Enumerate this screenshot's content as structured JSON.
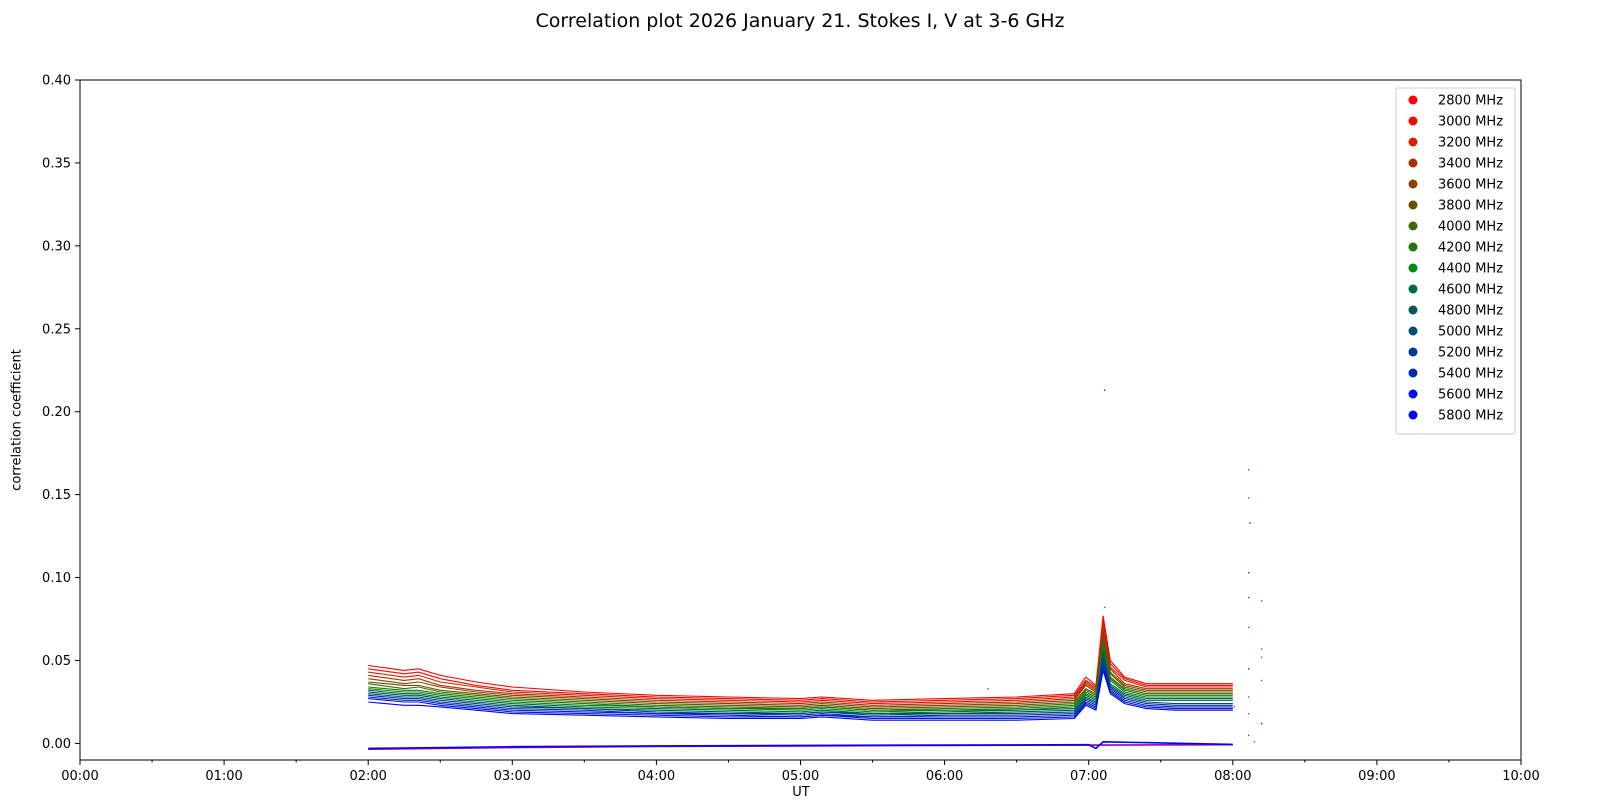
{
  "chart_data": {
    "type": "scatter",
    "title": "Correlation plot 2026 January 21. Stokes I, V at 3-6 GHz",
    "xlabel": "UT",
    "ylabel": "correlation coefficient",
    "x_ticks": [
      "00:00",
      "01:00",
      "02:00",
      "03:00",
      "04:00",
      "05:00",
      "06:00",
      "07:00",
      "08:00",
      "09:00",
      "10:00"
    ],
    "x_tick_hours": [
      0,
      1,
      2,
      3,
      4,
      5,
      6,
      7,
      8,
      9,
      10
    ],
    "xlim_hours": [
      0,
      10
    ],
    "y_ticks": [
      "0.00",
      "0.05",
      "0.10",
      "0.15",
      "0.20",
      "0.25",
      "0.30",
      "0.35",
      "0.40"
    ],
    "y_tick_values": [
      0.0,
      0.05,
      0.1,
      0.15,
      0.2,
      0.25,
      0.3,
      0.35,
      0.4
    ],
    "ylim": [
      -0.01,
      0.4
    ],
    "grid": false,
    "legend_position": "top-right",
    "time_samples_hours": [
      2.0,
      2.25,
      2.35,
      2.5,
      2.75,
      3.0,
      3.5,
      4.0,
      4.5,
      5.0,
      5.15,
      5.5,
      6.0,
      6.5,
      6.9,
      6.98,
      7.05,
      7.1,
      7.15,
      7.25,
      7.4,
      7.6,
      8.0
    ],
    "series": [
      {
        "name": "2800 MHz",
        "color": "#ff0000",
        "values": [
          0.047,
          0.044,
          0.045,
          0.041,
          0.037,
          0.034,
          0.031,
          0.029,
          0.028,
          0.027,
          0.028,
          0.026,
          0.027,
          0.028,
          0.03,
          0.04,
          0.035,
          0.077,
          0.05,
          0.04,
          0.036,
          0.036,
          0.036
        ]
      },
      {
        "name": "3000 MHz",
        "color": "#f20a00",
        "values": [
          0.045,
          0.042,
          0.043,
          0.039,
          0.035,
          0.032,
          0.03,
          0.028,
          0.027,
          0.026,
          0.027,
          0.025,
          0.026,
          0.027,
          0.029,
          0.038,
          0.034,
          0.074,
          0.048,
          0.039,
          0.035,
          0.035,
          0.035
        ]
      },
      {
        "name": "3200 MHz",
        "color": "#d42200",
        "values": [
          0.043,
          0.04,
          0.041,
          0.037,
          0.034,
          0.031,
          0.029,
          0.027,
          0.026,
          0.025,
          0.026,
          0.024,
          0.025,
          0.026,
          0.028,
          0.037,
          0.033,
          0.071,
          0.046,
          0.038,
          0.034,
          0.034,
          0.034
        ]
      },
      {
        "name": "3400 MHz",
        "color": "#a83200",
        "values": [
          0.041,
          0.038,
          0.039,
          0.035,
          0.032,
          0.03,
          0.028,
          0.026,
          0.025,
          0.024,
          0.025,
          0.023,
          0.024,
          0.025,
          0.027,
          0.036,
          0.032,
          0.068,
          0.045,
          0.036,
          0.033,
          0.033,
          0.033
        ]
      },
      {
        "name": "3600 MHz",
        "color": "#874200",
        "values": [
          0.039,
          0.036,
          0.037,
          0.034,
          0.031,
          0.029,
          0.027,
          0.025,
          0.024,
          0.023,
          0.024,
          0.022,
          0.023,
          0.024,
          0.026,
          0.035,
          0.031,
          0.066,
          0.043,
          0.035,
          0.032,
          0.032,
          0.032
        ]
      },
      {
        "name": "3800 MHz",
        "color": "#665200",
        "values": [
          0.037,
          0.035,
          0.035,
          0.032,
          0.03,
          0.028,
          0.026,
          0.024,
          0.023,
          0.022,
          0.023,
          0.021,
          0.022,
          0.023,
          0.025,
          0.033,
          0.03,
          0.064,
          0.042,
          0.034,
          0.031,
          0.031,
          0.031
        ]
      },
      {
        "name": "4000 MHz",
        "color": "#3f6a00",
        "values": [
          0.036,
          0.033,
          0.034,
          0.031,
          0.029,
          0.027,
          0.025,
          0.023,
          0.022,
          0.021,
          0.022,
          0.02,
          0.021,
          0.022,
          0.024,
          0.032,
          0.029,
          0.062,
          0.04,
          0.033,
          0.03,
          0.03,
          0.03
        ]
      },
      {
        "name": "4200 MHz",
        "color": "#1a7a00",
        "values": [
          0.034,
          0.032,
          0.032,
          0.03,
          0.028,
          0.026,
          0.024,
          0.022,
          0.021,
          0.021,
          0.022,
          0.02,
          0.02,
          0.021,
          0.023,
          0.031,
          0.028,
          0.06,
          0.039,
          0.032,
          0.029,
          0.029,
          0.029
        ]
      },
      {
        "name": "4400 MHz",
        "color": "#008a10",
        "values": [
          0.033,
          0.031,
          0.031,
          0.029,
          0.027,
          0.025,
          0.023,
          0.022,
          0.021,
          0.02,
          0.021,
          0.019,
          0.02,
          0.02,
          0.022,
          0.03,
          0.027,
          0.058,
          0.038,
          0.031,
          0.028,
          0.028,
          0.028
        ]
      },
      {
        "name": "4600 MHz",
        "color": "#006a42",
        "values": [
          0.032,
          0.03,
          0.03,
          0.028,
          0.026,
          0.024,
          0.022,
          0.021,
          0.02,
          0.019,
          0.02,
          0.018,
          0.019,
          0.02,
          0.021,
          0.029,
          0.026,
          0.056,
          0.036,
          0.03,
          0.027,
          0.027,
          0.027
        ]
      },
      {
        "name": "4800 MHz",
        "color": "#005a5a",
        "values": [
          0.031,
          0.029,
          0.029,
          0.027,
          0.025,
          0.023,
          0.021,
          0.02,
          0.019,
          0.018,
          0.019,
          0.018,
          0.018,
          0.019,
          0.02,
          0.028,
          0.025,
          0.054,
          0.035,
          0.029,
          0.026,
          0.026,
          0.026
        ]
      },
      {
        "name": "5000 MHz",
        "color": "#004a7a",
        "values": [
          0.03,
          0.028,
          0.028,
          0.026,
          0.024,
          0.022,
          0.021,
          0.019,
          0.018,
          0.018,
          0.019,
          0.017,
          0.018,
          0.018,
          0.019,
          0.027,
          0.024,
          0.052,
          0.034,
          0.028,
          0.025,
          0.024,
          0.024
        ]
      },
      {
        "name": "5200 MHz",
        "color": "#003a9a",
        "values": [
          0.029,
          0.027,
          0.027,
          0.025,
          0.023,
          0.021,
          0.02,
          0.018,
          0.018,
          0.017,
          0.018,
          0.016,
          0.017,
          0.017,
          0.018,
          0.026,
          0.023,
          0.05,
          0.033,
          0.027,
          0.024,
          0.023,
          0.023
        ]
      },
      {
        "name": "5400 MHz",
        "color": "#0028c0",
        "values": [
          0.028,
          0.026,
          0.026,
          0.024,
          0.022,
          0.02,
          0.019,
          0.018,
          0.017,
          0.016,
          0.017,
          0.016,
          0.016,
          0.016,
          0.017,
          0.025,
          0.022,
          0.048,
          0.032,
          0.026,
          0.023,
          0.022,
          0.022
        ]
      },
      {
        "name": "5600 MHz",
        "color": "#0014e0",
        "values": [
          0.027,
          0.025,
          0.025,
          0.023,
          0.021,
          0.019,
          0.018,
          0.017,
          0.016,
          0.016,
          0.017,
          0.015,
          0.015,
          0.015,
          0.016,
          0.024,
          0.021,
          0.046,
          0.031,
          0.025,
          0.022,
          0.021,
          0.021
        ]
      },
      {
        "name": "5800 MHz",
        "color": "#0000ff",
        "values": [
          0.025,
          0.023,
          0.023,
          0.022,
          0.02,
          0.018,
          0.017,
          0.016,
          0.015,
          0.015,
          0.016,
          0.014,
          0.014,
          0.014,
          0.015,
          0.023,
          0.02,
          0.044,
          0.03,
          0.024,
          0.021,
          0.02,
          0.02
        ]
      }
    ],
    "stokes_v_curves": [
      {
        "color": "#9900aa",
        "x_hours": [
          2.0,
          3.0,
          4.0,
          5.0,
          6.0,
          7.0,
          8.0
        ],
        "values": [
          -0.0035,
          -0.0025,
          -0.0018,
          -0.0015,
          -0.0012,
          -0.001,
          -0.0008
        ]
      },
      {
        "color": "#0000ff",
        "x_hours": [
          2.0,
          3.0,
          4.0,
          5.0,
          6.0,
          7.0,
          7.05,
          7.1,
          8.0
        ],
        "values": [
          -0.003,
          -0.002,
          -0.0015,
          -0.0012,
          -0.001,
          -0.0008,
          -0.003,
          0.001,
          -0.0006
        ]
      }
    ],
    "burst_points": [
      {
        "x_hours": 7.11,
        "y": 0.213,
        "color": "#0000ff"
      },
      {
        "x_hours": 8.11,
        "y": 0.165,
        "color": "#006a42"
      },
      {
        "x_hours": 8.11,
        "y": 0.148,
        "color": "#1a7a00"
      },
      {
        "x_hours": 8.12,
        "y": 0.133,
        "color": "#0000ff"
      },
      {
        "x_hours": 8.11,
        "y": 0.103,
        "color": "#0028c0"
      },
      {
        "x_hours": 8.11,
        "y": 0.088,
        "color": "#005a5a"
      },
      {
        "x_hours": 8.2,
        "y": 0.086,
        "color": "#008a10"
      },
      {
        "x_hours": 8.11,
        "y": 0.07,
        "color": "#ff0000"
      },
      {
        "x_hours": 8.2,
        "y": 0.057,
        "color": "#008a10"
      },
      {
        "x_hours": 8.2,
        "y": 0.052,
        "color": "#3f6a00"
      },
      {
        "x_hours": 8.11,
        "y": 0.045,
        "color": "#0000ff"
      },
      {
        "x_hours": 8.2,
        "y": 0.038,
        "color": "#1a7a00"
      },
      {
        "x_hours": 8.11,
        "y": 0.028,
        "color": "#008a10"
      },
      {
        "x_hours": 8.01,
        "y": 0.022,
        "color": "#008a10"
      },
      {
        "x_hours": 8.11,
        "y": 0.018,
        "color": "#008a10"
      },
      {
        "x_hours": 8.2,
        "y": 0.012,
        "color": "#0000ff"
      },
      {
        "x_hours": 8.11,
        "y": 0.005,
        "color": "#006a42"
      },
      {
        "x_hours": 8.15,
        "y": 0.001,
        "color": "#008a10"
      },
      {
        "x_hours": 6.3,
        "y": 0.033,
        "color": "#ff0000"
      },
      {
        "x_hours": 7.11,
        "y": 0.082,
        "color": "#ff0000"
      }
    ]
  }
}
